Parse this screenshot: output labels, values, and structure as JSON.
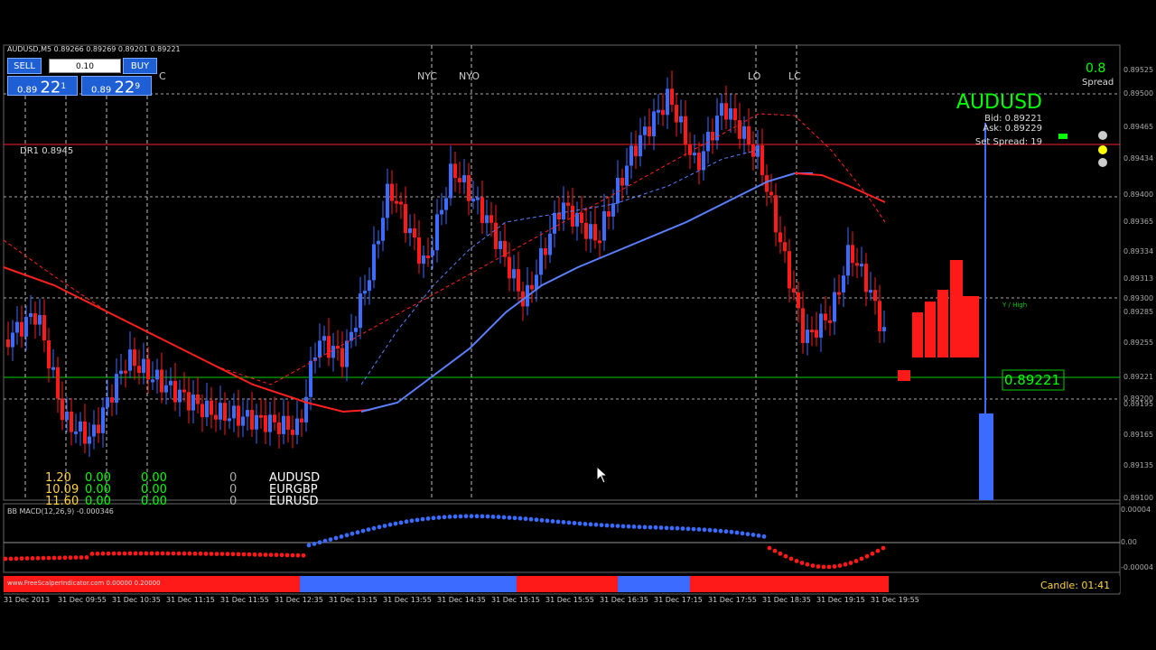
{
  "header": {
    "symbol_line": "AUDUSD,M5 0.89266 0.89269 0.89201 0.89221"
  },
  "trade_panel": {
    "sell_label": "SELL",
    "buy_label": "BUY",
    "lot": "0.10",
    "sell_price": {
      "prefix": "0.89",
      "big": "22",
      "sup": "1"
    },
    "buy_price": {
      "prefix": "0.89",
      "big": "22",
      "sup": "9"
    }
  },
  "session_labels": {
    "c": "C",
    "nyc": "NYC",
    "nyo": "NYO",
    "lo": "LO",
    "lc": "LC"
  },
  "dr1_label": "DR1  0.8945",
  "info": {
    "symbol": "AUDUSD",
    "bid": "Bid: 0.89221",
    "ask": "Ask: 0.89229",
    "spread_value": "0.8",
    "spread_label": "Spread",
    "set_spread": "Set Spread: 19"
  },
  "y_high_label": "Y / High",
  "current_price": "0.89221",
  "price_axis": [
    "0.89525",
    "0.89500",
    "0.89465",
    "0.89434",
    "0.89400",
    "0.89365",
    "0.89334",
    "0.89313",
    "0.89300",
    "0.89285",
    "0.89255",
    "0.89221",
    "0.89200",
    "0.89195",
    "0.89165",
    "0.89135",
    "0.89100"
  ],
  "stats": [
    {
      "a": "1.20",
      "b": "0.00",
      "c": "0.00",
      "d": "0",
      "sym": "AUDUSD"
    },
    {
      "a": "10.09",
      "b": "0.00",
      "c": "0.00",
      "d": "0",
      "sym": "EURGBP"
    },
    {
      "a": "11.60",
      "b": "0.00",
      "c": "0.00",
      "d": "0",
      "sym": "EURUSD"
    }
  ],
  "macd": {
    "label": "BB MACD(12,26,9) -0.000346",
    "axis": [
      "0.00004",
      "0.00",
      "-0.00004"
    ]
  },
  "bottom_bar": {
    "url": "www.FreeScalperIndicator.com  0.00000  0.20000",
    "candle": "Candle: 01:41"
  },
  "time_axis": [
    "31 Dec 2013",
    "31 Dec 09:55",
    "31 Dec 10:35",
    "31 Dec 11:15",
    "31 Dec 11:55",
    "31 Dec 12:35",
    "31 Dec 13:15",
    "31 Dec 13:55",
    "31 Dec 14:35",
    "31 Dec 15:15",
    "31 Dec 15:55",
    "31 Dec 16:35",
    "31 Dec 17:15",
    "31 Dec 17:55",
    "31 Dec 18:35",
    "31 Dec 19:15",
    "31 Dec 19:55"
  ],
  "colors": {
    "bull": "#3b6cff",
    "bear": "#ff1a1a",
    "green": "#00ff00",
    "grid": "#888888"
  }
}
